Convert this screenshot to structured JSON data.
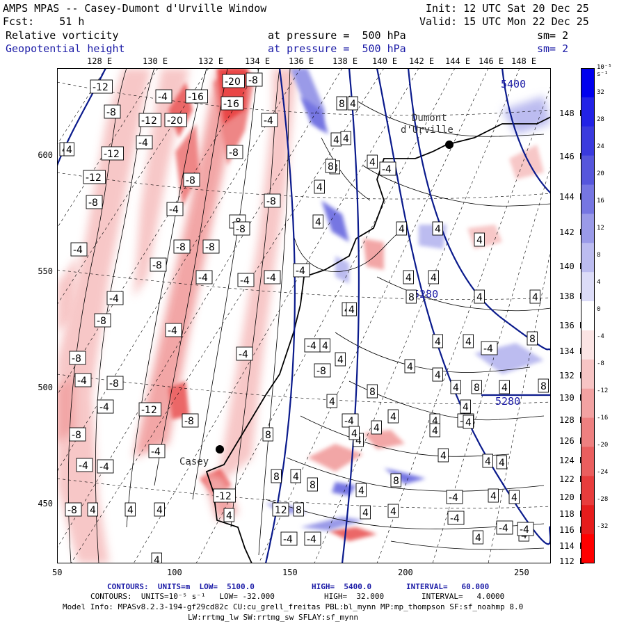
{
  "header": {
    "title": "AMPS MPAS -- Casey-Dumont d'Urville Window",
    "fcst": "Fcst:    51 h",
    "init": "Init: 12 UTC Sat 20 Dec 25",
    "valid": "Valid: 15 UTC Mon 22 Dec 25",
    "field1": {
      "name": "Relative vorticity",
      "pressure": "at pressure =  500 hPa",
      "sm": "sm= 2"
    },
    "field2": {
      "name": "Geopotential height",
      "pressure": "at pressure =  500 hPa",
      "sm": "sm= 2"
    }
  },
  "axes": {
    "top_lon": [
      "128 E",
      "130 E",
      "132 E",
      "134 E",
      "136 E",
      "138 E",
      "140 E",
      "142 E",
      "144 E",
      "146 E",
      "148 E"
    ],
    "left_y": [
      "600",
      "550",
      "500",
      "450"
    ],
    "bottom_x": [
      "50",
      "100",
      "150",
      "200",
      "250"
    ],
    "right_lon": [
      "148 E",
      "146 E",
      "144 E",
      "142 E",
      "140 E",
      "138 E",
      "136 E",
      "134 E",
      "132 E",
      "130 E",
      "128 E",
      "126 E",
      "124 E",
      "122 E",
      "120 E",
      "118 E",
      "116 E",
      "114 E",
      "112 E"
    ]
  },
  "colorbar": {
    "unit": "10⁻⁵ s⁻¹",
    "labels": [
      "32",
      "28",
      "24",
      "20",
      "16",
      "12",
      "8",
      "4",
      "0",
      "-4",
      "-8",
      "-12",
      "-16",
      "-20",
      "-24",
      "-28",
      "-32"
    ],
    "colors": [
      "#0000ee",
      "#2222e6",
      "#3a3ade",
      "#5656dc",
      "#7676e2",
      "#9a9ae8",
      "#bcbcf0",
      "#dcdcf8",
      "#ffffff",
      "#fbe4e4",
      "#f7c4c4",
      "#f2a2a2",
      "#ee8080",
      "#ea5e5e",
      "#e83c3c",
      "#e61c1c",
      "#ff0000"
    ]
  },
  "places": {
    "dumont": "Dumont",
    "durville": "d'Urville",
    "casey": "Casey"
  },
  "geo_labels": {
    "g1": "5400",
    "g2": "5280",
    "g3": "5280"
  },
  "vort_labels": {
    "l01": "-12",
    "l02": "-4",
    "l03": "-16",
    "l04": "-20",
    "l05": "-8",
    "l06": "-8",
    "l07": "-12",
    "l08": "-20",
    "l09": "-16",
    "l10": "-4",
    "l11": "-4",
    "l12": "-12",
    "l13": "-12",
    "l14": "-8",
    "l15": "-8",
    "l16": "-8",
    "l17": "-4",
    "l18": "-8",
    "l19": "-8",
    "l20": "-8",
    "l21": "-4",
    "l22": "-4",
    "l23": "-8",
    "l24": "-4",
    "l25": "-8",
    "l26": "-4",
    "l27": "-8",
    "l28": "-4",
    "l29": "-8",
    "l30": "-4",
    "l31": "-12",
    "l32": "-8",
    "l33": "-4",
    "l34": "-4",
    "l35": "-8",
    "l36": "-4",
    "l37": "-8",
    "l38": "-4",
    "l39": "-4",
    "l40": "-8",
    "l41": "4",
    "l42": "4",
    "l43": "4",
    "l44": "4",
    "l45": "4",
    "l46": "8",
    "l47": "4",
    "l48": "4",
    "l49": "8",
    "l50": "4",
    "l51": "4",
    "l52": "4",
    "l53": "4",
    "l54": "4",
    "l55": "4",
    "l56": "4",
    "l57": "8",
    "l58": "4",
    "l59": "4",
    "l60": "4",
    "l61": "4",
    "l62": "4",
    "l63": "4",
    "l64": "8",
    "l65": "4",
    "l66": "8",
    "l67": "4",
    "l68": "4",
    "l69": "8",
    "l70": "4",
    "l71": "4",
    "l72": "4",
    "l73": "4",
    "l74": "4",
    "l75": "4",
    "l76": "4",
    "l77": "4",
    "l78": "8",
    "l79": "4",
    "l80": "-4",
    "l81": "-4",
    "l82": "-4",
    "l83": "-4",
    "l84": "-4",
    "l85": "8",
    "l86": "12",
    "l87": "8",
    "l88": "4",
    "l89": "4",
    "l90": "8",
    "l91": "4",
    "l92": "4",
    "l93": "4",
    "l94": "-4",
    "l95": "-8",
    "l96": "-12",
    "l97": "-4",
    "l98": "-8",
    "l99": "-4",
    "l100": "8",
    "l101": "4",
    "l102": "4",
    "l103": "4",
    "l104": "-4",
    "l105": "4",
    "l106": "4",
    "l107": "4",
    "l108": "8",
    "l109": "4",
    "l110": "4",
    "l111": "-4",
    "l112": "4",
    "l113": "8",
    "l114": "4",
    "l115": "-4",
    "l116": "4",
    "l117": "-4",
    "l118": "4",
    "l119": "4",
    "l120": "-4"
  },
  "footer": {
    "line1_a": "CONTOURS:  UNITS=m  LOW=  5100.0",
    "line1_b": "HIGH=  5400.0",
    "line1_c": "INTERVAL=   60.000",
    "line2_a": "CONTOURS:  UNITS=10⁻⁵ s⁻¹   LOW= -32.000",
    "line2_b": "HIGH=  32.000",
    "line2_c": "INTERVAL=   4.0000",
    "line3": "Model Info: MPASv8.2.3-194-gf29cd82c CU:cu_grell_freitas PBL:bl_mynn MP:mp_thompson SF:sf_noahmp 8.0",
    "line4": "LW:rrtmg_lw SW:rrtmg_sw SFLAY:sf_mynn"
  }
}
